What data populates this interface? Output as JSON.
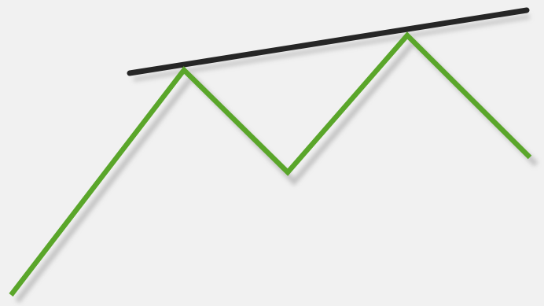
{
  "colors": {
    "background": "#f1f1f1",
    "price_line": "#5aa62a",
    "trend_line": "#262626",
    "shadow": "#9a9a9a"
  },
  "diagram": {
    "type": "double-top-pattern",
    "trend_line": {
      "kind": "rising-resistance",
      "touches_peaks": 2
    }
  }
}
